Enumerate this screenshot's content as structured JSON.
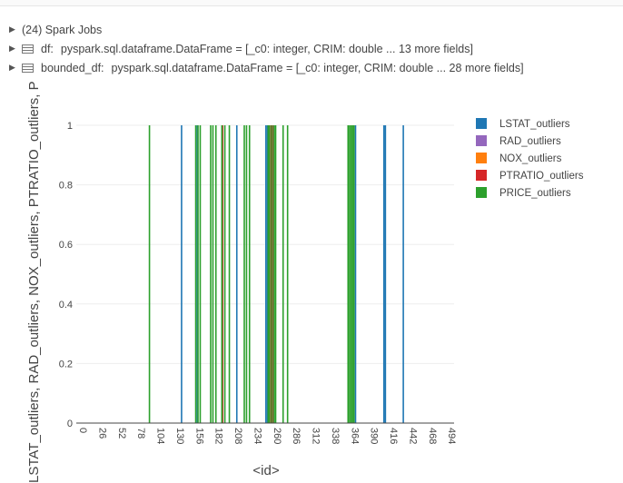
{
  "output": {
    "jobs_label": "(24) Spark Jobs",
    "df_rows": [
      {
        "name": "df:",
        "schema": "pyspark.sql.dataframe.DataFrame = [_c0: integer, CRIM: double ... 13 more fields]"
      },
      {
        "name": "bounded_df:",
        "schema": "pyspark.sql.dataframe.DataFrame = [_c0: integer, CRIM: double ... 28 more fields]"
      }
    ]
  },
  "chart_data": {
    "type": "bar",
    "xlabel": "<id>",
    "ylabel": "LSTAT_outliers, RAD_outliers, NOX_outliers, PTRATIO_outliers, PR",
    "xlim": [
      0,
      506
    ],
    "ylim": [
      0,
      1
    ],
    "x_ticks": [
      0,
      26,
      52,
      78,
      104,
      130,
      156,
      182,
      208,
      234,
      260,
      286,
      312,
      338,
      364,
      390,
      416,
      442,
      468,
      494
    ],
    "y_ticks": [
      0,
      0.2,
      0.4,
      0.6,
      0.8,
      1
    ],
    "grid": true,
    "legend_position": "right",
    "series": [
      {
        "name": "LSTAT_outliers",
        "color": "#1f77b4",
        "x": [
          141,
          162,
          215,
          254,
          256,
          262,
          374,
          412,
          414,
          438
        ],
        "values": [
          1,
          1,
          1,
          1,
          1,
          1,
          1,
          1,
          1,
          1
        ]
      },
      {
        "name": "RAD_outliers",
        "color": "#9467bd",
        "x": [],
        "values": []
      },
      {
        "name": "NOX_outliers",
        "color": "#ff7f0e",
        "x": [],
        "values": []
      },
      {
        "name": "PTRATIO_outliers",
        "color": "#d62728",
        "x": [
          196,
          258,
          261,
          264
        ],
        "values": [
          1,
          1,
          1,
          1
        ]
      },
      {
        "name": "PRICE_outliers",
        "color": "#2ca02c",
        "x": [
          98,
          160,
          163,
          166,
          180,
          183,
          187,
          195,
          199,
          205,
          225,
          228,
          232,
          257,
          259,
          262,
          265,
          267,
          277,
          283,
          364,
          366,
          368,
          370,
          372
        ],
        "values": [
          1,
          1,
          1,
          1,
          1,
          1,
          1,
          1,
          1,
          1,
          1,
          1,
          1,
          1,
          1,
          1,
          1,
          1,
          1,
          1,
          1,
          1,
          1,
          1,
          1
        ]
      }
    ]
  }
}
